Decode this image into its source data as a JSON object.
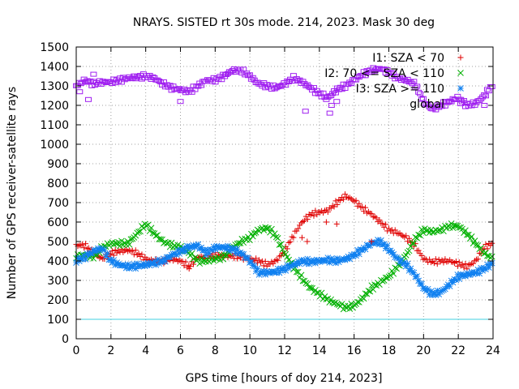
{
  "chart_data": {
    "type": "scatter",
    "title": "NRAYS. SISTED rt 30s mode. 214, 2023. Mask 30 deg",
    "xlabel": "GPS time [hours of doy 214, 2023]",
    "ylabel": "Number of GPS receiver-satellite rays",
    "xlim": [
      0,
      24
    ],
    "ylim": [
      0,
      1500
    ],
    "xticks": [
      0,
      2,
      4,
      6,
      8,
      10,
      12,
      14,
      16,
      18,
      20,
      22,
      24
    ],
    "yticks": [
      0,
      100,
      200,
      300,
      400,
      500,
      600,
      700,
      800,
      900,
      1000,
      1100,
      1200,
      1300,
      1400,
      1500
    ],
    "grid": true,
    "legend_position": "top-right",
    "threshold": {
      "y": 100,
      "color": "#40d0e0"
    },
    "series": [
      {
        "name": "I1: SZA < 70",
        "legend_label": "I1: SZA < 70",
        "marker": "plus",
        "color": "#e00000",
        "x": [
          0,
          0.5,
          1,
          1.5,
          2,
          2.5,
          3,
          3.5,
          4,
          4.5,
          5,
          5.5,
          6,
          6.5,
          7,
          7.5,
          8,
          8.5,
          9,
          9.5,
          10,
          10.5,
          11,
          11.5,
          12,
          12.5,
          13,
          13.5,
          14,
          14.5,
          15,
          15.5,
          16,
          16.5,
          17,
          17.5,
          18,
          18.5,
          19,
          19.5,
          20,
          20.5,
          21,
          21.5,
          22,
          22.5,
          23,
          23.5,
          24
        ],
        "y": [
          480,
          480,
          440,
          410,
          440,
          450,
          455,
          440,
          410,
          400,
          400,
          410,
          400,
          370,
          420,
          420,
          430,
          425,
          425,
          420,
          410,
          400,
          380,
          400,
          450,
          530,
          600,
          640,
          650,
          660,
          700,
          735,
          710,
          670,
          640,
          600,
          560,
          545,
          520,
          480,
          410,
          395,
          400,
          400,
          385,
          370,
          400,
          470,
          490
        ]
      },
      {
        "name": "I2: 70 <= SZA < 110",
        "legend_label": "I2: 70 <= SZA < 110",
        "marker": "cross",
        "color": "#00b000",
        "x": [
          0,
          0.5,
          1,
          1.5,
          2,
          2.5,
          3,
          3.5,
          4,
          4.5,
          5,
          5.5,
          6,
          6.5,
          7,
          7.5,
          8,
          8.5,
          9,
          9.5,
          10,
          10.5,
          11,
          11.5,
          12,
          12.5,
          13,
          13.5,
          14,
          14.5,
          15,
          15.5,
          16,
          16.5,
          17,
          17.5,
          18,
          18.5,
          19,
          19.5,
          20,
          20.5,
          21,
          21.5,
          22,
          22.5,
          23,
          23.5,
          24
        ],
        "y": [
          420,
          430,
          420,
          470,
          490,
          490,
          490,
          540,
          590,
          540,
          500,
          480,
          470,
          440,
          400,
          400,
          410,
          420,
          470,
          500,
          520,
          560,
          570,
          530,
          440,
          370,
          310,
          260,
          230,
          200,
          180,
          160,
          170,
          210,
          260,
          290,
          320,
          370,
          430,
          510,
          560,
          550,
          560,
          580,
          580,
          540,
          490,
          440,
          410
        ]
      },
      {
        "name": "I3: SZA >= 110",
        "legend_label": "I3: SZA >= 110",
        "marker": "star",
        "color": "#1080f0",
        "x": [
          0,
          0.5,
          1,
          1.5,
          2,
          2.5,
          3,
          3.5,
          4,
          4.5,
          5,
          5.5,
          6,
          6.5,
          7,
          7.5,
          8,
          8.5,
          9,
          9.5,
          10,
          10.5,
          11,
          11.5,
          12,
          12.5,
          13,
          13.5,
          14,
          14.5,
          15,
          15.5,
          16,
          16.5,
          17,
          17.5,
          18,
          18.5,
          19,
          19.5,
          20,
          20.5,
          21,
          21.5,
          22,
          22.5,
          23,
          23.5,
          24
        ],
        "y": [
          400,
          420,
          450,
          465,
          400,
          380,
          370,
          375,
          380,
          390,
          400,
          430,
          450,
          470,
          480,
          440,
          470,
          470,
          460,
          440,
          400,
          340,
          340,
          345,
          360,
          380,
          400,
          395,
          400,
          405,
          400,
          410,
          430,
          460,
          490,
          500,
          460,
          410,
          380,
          330,
          260,
          230,
          240,
          280,
          320,
          330,
          340,
          360,
          390
        ]
      },
      {
        "name": "global",
        "legend_label": "global",
        "marker": "square",
        "color": "#a020f0",
        "x": [
          0,
          0.5,
          1,
          1.5,
          2,
          2.5,
          3,
          3.5,
          4,
          4.5,
          5,
          5.5,
          6,
          6.5,
          7,
          7.5,
          8,
          8.5,
          9,
          9.5,
          10,
          10.5,
          11,
          11.5,
          12,
          12.5,
          13,
          13.5,
          14,
          14.5,
          15,
          15.5,
          16,
          16.5,
          17,
          17.5,
          18,
          18.5,
          19,
          19.5,
          20,
          20.5,
          21,
          21.5,
          22,
          22.5,
          23,
          23.5,
          24
        ],
        "y": [
          1300,
          1330,
          1310,
          1320,
          1320,
          1330,
          1340,
          1345,
          1350,
          1340,
          1310,
          1290,
          1280,
          1270,
          1300,
          1330,
          1330,
          1350,
          1380,
          1380,
          1350,
          1310,
          1300,
          1290,
          1310,
          1340,
          1320,
          1290,
          1260,
          1240,
          1280,
          1300,
          1330,
          1360,
          1380,
          1390,
          1370,
          1340,
          1330,
          1310,
          1220,
          1180,
          1200,
          1220,
          1240,
          1200,
          1210,
          1250,
          1310
        ]
      }
    ],
    "outliers": [
      {
        "series": "I1: SZA < 70",
        "x": [
          6.5,
          13.0,
          13.3,
          14.4,
          15.0,
          17.0
        ],
        "y": [
          360,
          520,
          500,
          600,
          590,
          500
        ]
      },
      {
        "series": "global",
        "x": [
          0.2,
          0.7,
          1.0,
          6.0,
          8.6,
          13.2,
          14.4,
          14.6,
          14.7,
          15.0,
          23.5
        ],
        "y": [
          1270,
          1230,
          1360,
          1220,
          1360,
          1170,
          1230,
          1160,
          1200,
          1220,
          1200
        ]
      }
    ]
  }
}
